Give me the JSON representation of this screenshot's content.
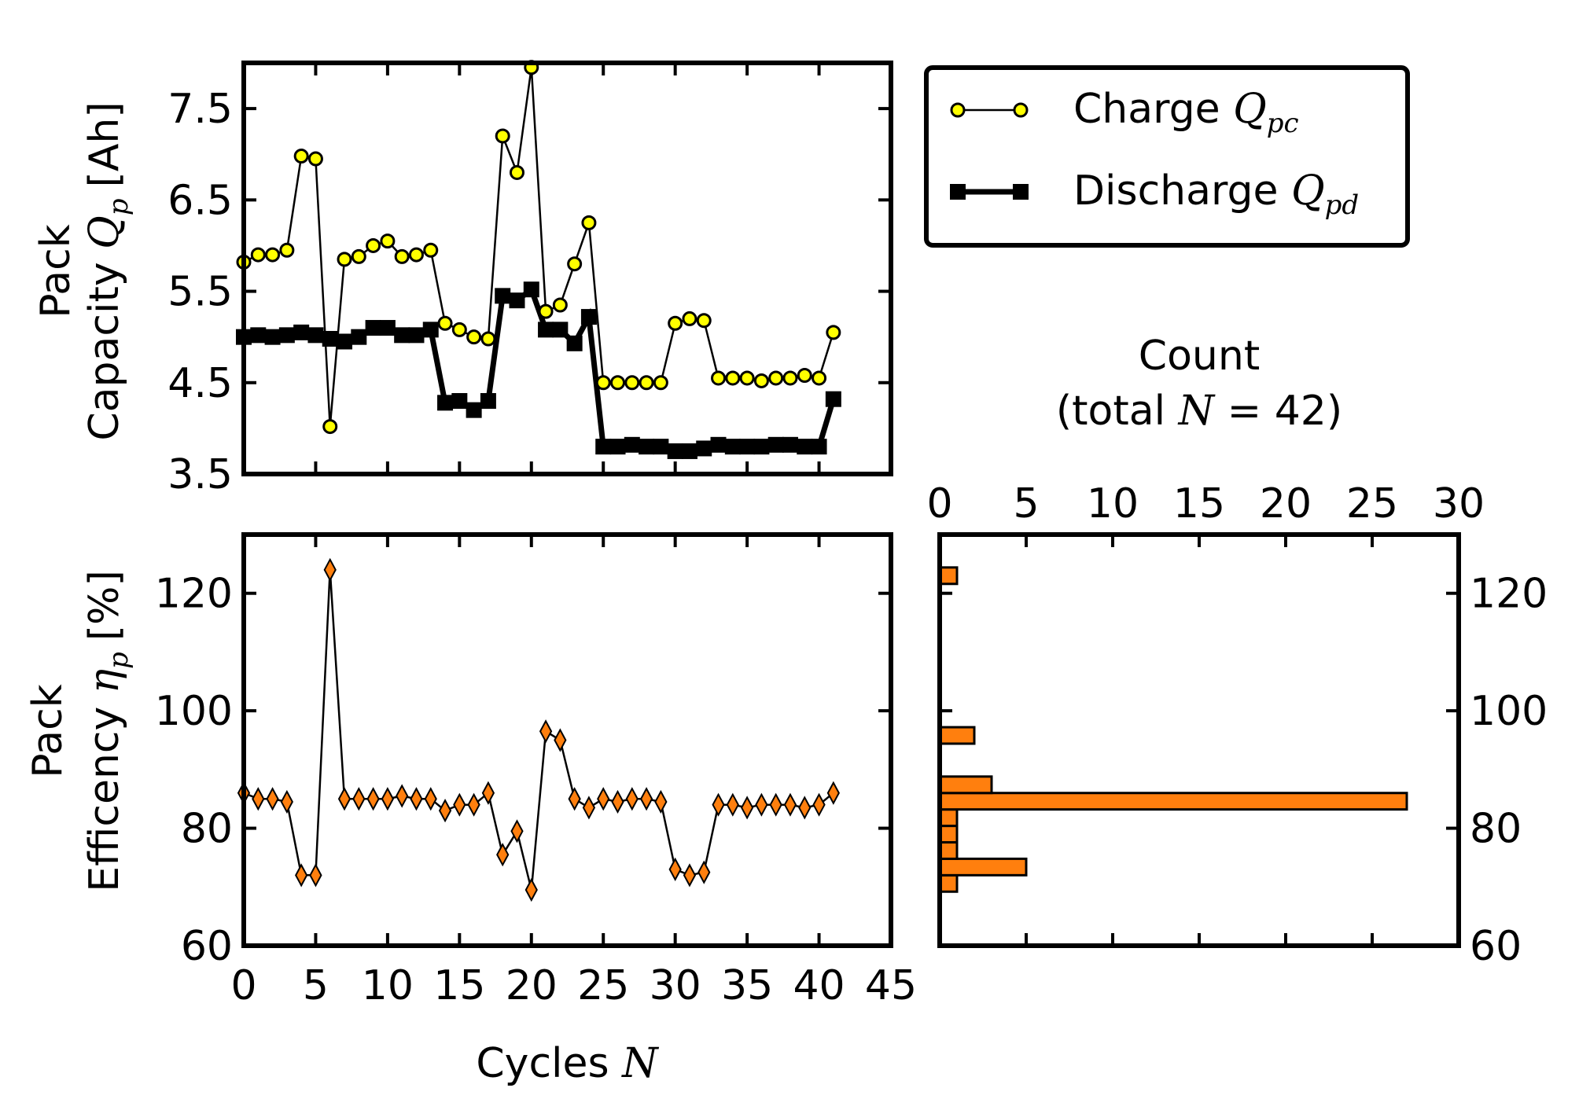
{
  "chart_data": [
    {
      "type": "line",
      "panel": "capacity",
      "ylabel_line1": "Pack",
      "ylabel_line2": "Capacity",
      "ylabel_symbol": "Q",
      "ylabel_symbol_sub": "p",
      "ylabel_unit": "[Ah]",
      "xlim": [
        0,
        45
      ],
      "ylim": [
        3.5,
        8.0
      ],
      "yticks": [
        3.5,
        4.5,
        5.5,
        6.5,
        7.5
      ],
      "ytick_labels": [
        "3.5",
        "4.5",
        "5.5",
        "6.5",
        "7.5"
      ],
      "grid": false,
      "series": [
        {
          "name": "Charge",
          "symbol": "Q",
          "symbol_sub": "pc",
          "marker": "circle",
          "color": "#ffff00",
          "x": [
            0,
            1,
            2,
            3,
            4,
            5,
            6,
            7,
            8,
            9,
            10,
            11,
            12,
            13,
            14,
            15,
            16,
            17,
            18,
            19,
            20,
            21,
            22,
            23,
            24,
            25,
            26,
            27,
            28,
            29,
            30,
            31,
            32,
            33,
            34,
            35,
            36,
            37,
            38,
            39,
            40,
            41
          ],
          "values": [
            5.82,
            5.9,
            5.9,
            5.95,
            6.98,
            6.95,
            4.02,
            5.85,
            5.88,
            6.0,
            6.05,
            5.88,
            5.9,
            5.95,
            5.15,
            5.08,
            5.0,
            4.98,
            7.2,
            6.8,
            7.95,
            5.28,
            5.35,
            5.8,
            6.25,
            4.5,
            4.5,
            4.5,
            4.5,
            4.5,
            5.15,
            5.2,
            5.18,
            4.55,
            4.55,
            4.55,
            4.52,
            4.55,
            4.55,
            4.58,
            4.55,
            5.05
          ]
        },
        {
          "name": "Discharge",
          "symbol": "Q",
          "symbol_sub": "pd",
          "marker": "square",
          "color": "#000000",
          "x": [
            0,
            1,
            2,
            3,
            4,
            5,
            6,
            7,
            8,
            9,
            10,
            11,
            12,
            13,
            14,
            15,
            16,
            17,
            18,
            19,
            20,
            21,
            22,
            23,
            24,
            25,
            26,
            27,
            28,
            29,
            30,
            31,
            32,
            33,
            34,
            35,
            36,
            37,
            38,
            39,
            40,
            41
          ],
          "values": [
            5.0,
            5.02,
            5.0,
            5.02,
            5.05,
            5.02,
            4.98,
            4.95,
            5.0,
            5.1,
            5.1,
            5.02,
            5.02,
            5.08,
            4.28,
            4.3,
            4.2,
            4.3,
            5.45,
            5.4,
            5.52,
            5.08,
            5.08,
            4.93,
            5.22,
            3.8,
            3.8,
            3.82,
            3.8,
            3.8,
            3.75,
            3.75,
            3.78,
            3.82,
            3.8,
            3.8,
            3.8,
            3.82,
            3.82,
            3.8,
            3.8,
            4.32
          ]
        }
      ]
    },
    {
      "type": "line",
      "panel": "efficiency",
      "ylabel_line1": "Pack",
      "ylabel_line2": "Efficency",
      "ylabel_symbol": "η",
      "ylabel_symbol_sub": "p",
      "ylabel_unit": "[%]",
      "xlabel": "Cycles",
      "xlabel_symbol": "N",
      "xlim": [
        0,
        45
      ],
      "ylim": [
        60,
        130
      ],
      "xticks": [
        0,
        5,
        10,
        15,
        20,
        25,
        30,
        35,
        40,
        45
      ],
      "xtick_labels": [
        "0",
        "5",
        "10",
        "15",
        "20",
        "25",
        "30",
        "35",
        "40",
        "45"
      ],
      "yticks": [
        60,
        80,
        100,
        120
      ],
      "ytick_labels": [
        "60",
        "80",
        "100",
        "120"
      ],
      "grid": false,
      "series": [
        {
          "name": "Efficiency",
          "marker": "diamond",
          "color": "#ff7f0e",
          "x": [
            0,
            1,
            2,
            3,
            4,
            5,
            6,
            7,
            8,
            9,
            10,
            11,
            12,
            13,
            14,
            15,
            16,
            17,
            18,
            19,
            20,
            21,
            22,
            23,
            24,
            25,
            26,
            27,
            28,
            29,
            30,
            31,
            32,
            33,
            34,
            35,
            36,
            37,
            38,
            39,
            40,
            41
          ],
          "values": [
            86,
            85,
            85,
            84.5,
            72,
            72,
            124,
            85,
            85,
            85,
            85,
            85.5,
            85,
            85,
            83,
            84,
            84,
            86,
            75.5,
            79.5,
            69.5,
            96.5,
            95,
            85,
            83.5,
            85,
            84.5,
            85,
            85,
            84.5,
            73,
            72,
            72.5,
            84,
            84,
            83.5,
            84,
            84,
            84,
            83.5,
            84,
            86
          ]
        }
      ]
    },
    {
      "type": "bar",
      "orientation": "horizontal",
      "panel": "histogram",
      "title_line1": "Count",
      "title_line2_prefix": "(total ",
      "title_symbol": "N",
      "title_line2_suffix": " = 42)",
      "xlim": [
        0,
        30
      ],
      "xticks": [
        0,
        5,
        10,
        15,
        20,
        25,
        30
      ],
      "xtick_labels": [
        "0",
        "5",
        "10",
        "15",
        "20",
        "25",
        "30"
      ],
      "ylim": [
        60,
        130
      ],
      "yticks": [
        60,
        80,
        100,
        120
      ],
      "ytick_labels": [
        "60",
        "80",
        "100",
        "120"
      ],
      "bin_width": 2.8,
      "bins_low": [
        69.2,
        72.0,
        74.8,
        77.6,
        80.4,
        83.2,
        86.0,
        94.4,
        121.6
      ],
      "counts": [
        1,
        5,
        1,
        1,
        1,
        27,
        3,
        2,
        1
      ],
      "color": "#ff7f0e"
    }
  ]
}
